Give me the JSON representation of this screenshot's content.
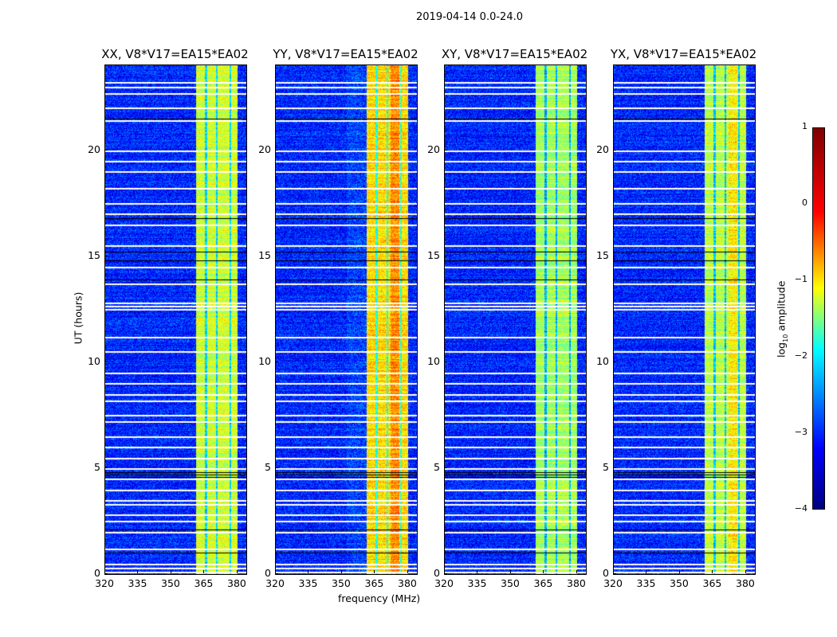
{
  "suptitle": "2019-04-14 0.0-24.0",
  "chart_data": {
    "type": "heatmap",
    "xlabel": "frequency (MHz)",
    "ylabel": "UT (hours)",
    "xlim": [
      320,
      384
    ],
    "ylim": [
      0,
      24
    ],
    "xticks": [
      "320",
      "335",
      "350",
      "365",
      "380"
    ],
    "yticks": [
      "0",
      "5",
      "10",
      "15",
      "20"
    ],
    "colormap": "jet",
    "panels": [
      {
        "title": "XX, V8*V17=EA15*EA02",
        "band_level": -1.1
      },
      {
        "title": "YY, V8*V17=EA15*EA02",
        "band_level": -0.7
      },
      {
        "title": "XY, V8*V17=EA15*EA02",
        "band_level": -1.3
      },
      {
        "title": "YX, V8*V17=EA15*EA02",
        "band_level": -1.2
      }
    ],
    "background_level": -3.2,
    "bright_band_mhz": [
      361,
      380
    ],
    "band_dips_mhz": [
      365.5,
      370.5,
      376.5
    ],
    "flagged_hours": [
      0.1,
      0.3,
      0.5,
      1.2,
      2.0,
      2.5,
      2.8,
      3.3,
      3.5,
      4.0,
      4.5,
      5.0,
      5.5,
      6.0,
      6.5,
      7.2,
      7.5,
      8.2,
      8.5,
      9.0,
      9.5,
      10.5,
      11.2,
      12.5,
      12.65,
      12.8,
      13.7,
      14.5,
      15.5,
      16.5,
      17.0,
      17.5,
      18.2,
      19.0,
      19.5,
      20.0,
      21.4,
      22.0,
      22.7,
      23.0,
      23.2
    ],
    "dark_hours": [
      1.0,
      2.1,
      4.6,
      4.7,
      4.8,
      13.9,
      14.8,
      15.2,
      16.8,
      21.5
    ],
    "colorbar": {
      "label": "log10 amplitude",
      "label_main": "log",
      "label_sub": "10",
      "label_rest": " amplitude",
      "ticks": [
        "1",
        "0",
        "−1",
        "−2",
        "−3",
        "−4"
      ],
      "range": [
        -4,
        1
      ]
    }
  }
}
